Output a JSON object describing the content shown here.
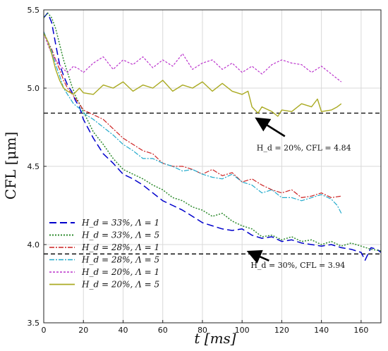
{
  "chart_data": {
    "type": "line",
    "xlabel": "t [ms]",
    "ylabel": "CFL [μm]",
    "xlim": [
      0,
      170
    ],
    "ylim": [
      3.5,
      5.5
    ],
    "xticks": [
      0,
      20,
      40,
      60,
      80,
      100,
      120,
      140,
      160
    ],
    "yticks": [
      3.5,
      4.0,
      4.5,
      5.0,
      5.5
    ],
    "xtick_labels": [
      "0",
      "20",
      "40",
      "60",
      "80",
      "100",
      "120",
      "140",
      "160"
    ],
    "ytick_labels": [
      "3.5",
      "4.0",
      "4.5",
      "5.0",
      "5.5"
    ],
    "grid": true,
    "legend_position": "lower-left",
    "reference_lines": [
      {
        "y": 4.84,
        "style": "dashed",
        "color": "#000000"
      },
      {
        "y": 3.94,
        "style": "dashed",
        "color": "#000000"
      }
    ],
    "annotations": [
      {
        "text": "H_d = 20%, CFL = 4.84",
        "text_at": [
          118,
          4.62
        ],
        "arrow_to": [
          108,
          4.8
        ]
      },
      {
        "text": "H_d = 30%, CFL = 3.94",
        "text_at": [
          115,
          3.87
        ],
        "arrow_to": [
          104,
          3.95
        ]
      }
    ],
    "series": [
      {
        "name": "H_d = 33%, Λ = 1",
        "color": "#0000cc",
        "dash": "10,5",
        "width": 1.5,
        "x": [
          0,
          2,
          4,
          6,
          8,
          10,
          12,
          14,
          16,
          18,
          20,
          25,
          30,
          35,
          40,
          45,
          50,
          55,
          60,
          65,
          70,
          75,
          80,
          85,
          90,
          95,
          100,
          105,
          110,
          115,
          120,
          125,
          130,
          135,
          140,
          145,
          150,
          155,
          160,
          162,
          165,
          168,
          170
        ],
        "y": [
          5.45,
          5.48,
          5.42,
          5.28,
          5.15,
          5.08,
          5.02,
          4.98,
          4.92,
          4.88,
          4.8,
          4.68,
          4.58,
          4.52,
          4.45,
          4.42,
          4.38,
          4.33,
          4.28,
          4.25,
          4.22,
          4.18,
          4.14,
          4.12,
          4.1,
          4.09,
          4.1,
          4.06,
          4.04,
          4.05,
          4.02,
          4.03,
          4.01,
          4.0,
          3.99,
          4.0,
          3.98,
          3.97,
          3.95,
          3.9,
          3.98,
          3.97,
          3.95
        ]
      },
      {
        "name": "H_d = 33%, Λ = 5",
        "color": "#2e8b2e",
        "dash": "2,2",
        "width": 1.5,
        "x": [
          0,
          2,
          4,
          6,
          8,
          10,
          12,
          14,
          16,
          18,
          20,
          25,
          30,
          35,
          40,
          45,
          50,
          55,
          60,
          65,
          70,
          75,
          80,
          85,
          90,
          95,
          100,
          105,
          110,
          115,
          120,
          125,
          130,
          135,
          140,
          145,
          150,
          155,
          160,
          165,
          170
        ],
        "y": [
          5.45,
          5.48,
          5.45,
          5.38,
          5.28,
          5.18,
          5.1,
          5.02,
          4.95,
          4.9,
          4.85,
          4.72,
          4.64,
          4.55,
          4.48,
          4.45,
          4.42,
          4.38,
          4.35,
          4.3,
          4.28,
          4.24,
          4.22,
          4.18,
          4.2,
          4.15,
          4.12,
          4.1,
          4.05,
          4.06,
          4.03,
          4.05,
          4.02,
          4.03,
          4.0,
          4.02,
          3.99,
          4.01,
          3.99,
          3.97,
          3.96
        ]
      },
      {
        "name": "H_d = 28%, Λ = 1",
        "color": "#cc2222",
        "dash": "7,2,2,2",
        "width": 1.2,
        "x": [
          0,
          2,
          4,
          6,
          8,
          10,
          12,
          15,
          18,
          20,
          25,
          30,
          35,
          40,
          45,
          50,
          55,
          60,
          65,
          70,
          75,
          80,
          85,
          90,
          95,
          100,
          105,
          110,
          115,
          120,
          125,
          130,
          135,
          140,
          145,
          150
        ],
        "y": [
          5.36,
          5.3,
          5.25,
          5.18,
          5.12,
          5.05,
          5.0,
          4.95,
          4.9,
          4.86,
          4.83,
          4.8,
          4.74,
          4.68,
          4.64,
          4.6,
          4.58,
          4.52,
          4.5,
          4.5,
          4.48,
          4.45,
          4.48,
          4.44,
          4.46,
          4.4,
          4.42,
          4.38,
          4.35,
          4.33,
          4.35,
          4.3,
          4.31,
          4.33,
          4.3,
          4.31
        ]
      },
      {
        "name": "H_d = 28%, Λ = 5",
        "color": "#22aacc",
        "dash": "7,2,2,2",
        "width": 1.2,
        "x": [
          0,
          2,
          4,
          6,
          8,
          10,
          12,
          15,
          18,
          20,
          25,
          30,
          35,
          40,
          45,
          50,
          55,
          60,
          65,
          70,
          75,
          80,
          85,
          90,
          95,
          100,
          105,
          110,
          115,
          120,
          125,
          130,
          135,
          140,
          145,
          148,
          150
        ],
        "y": [
          5.36,
          5.3,
          5.24,
          5.15,
          5.08,
          5.0,
          4.96,
          4.9,
          4.87,
          4.84,
          4.8,
          4.75,
          4.7,
          4.64,
          4.6,
          4.55,
          4.55,
          4.52,
          4.5,
          4.47,
          4.48,
          4.45,
          4.43,
          4.42,
          4.45,
          4.4,
          4.38,
          4.33,
          4.35,
          4.3,
          4.3,
          4.28,
          4.3,
          4.32,
          4.29,
          4.25,
          4.2
        ]
      },
      {
        "name": "H_d = 20%, Λ = 1",
        "color": "#bb33cc",
        "dash": "3,2",
        "width": 1.2,
        "x": [
          0,
          2,
          4,
          6,
          8,
          10,
          12,
          15,
          18,
          20,
          25,
          30,
          35,
          40,
          45,
          50,
          55,
          60,
          65,
          70,
          75,
          80,
          85,
          90,
          95,
          100,
          105,
          110,
          115,
          120,
          125,
          130,
          135,
          140,
          145,
          148,
          150
        ],
        "y": [
          5.35,
          5.28,
          5.22,
          5.18,
          5.15,
          5.12,
          5.1,
          5.14,
          5.12,
          5.1,
          5.16,
          5.2,
          5.12,
          5.18,
          5.15,
          5.2,
          5.13,
          5.18,
          5.14,
          5.22,
          5.12,
          5.16,
          5.18,
          5.12,
          5.16,
          5.1,
          5.14,
          5.09,
          5.15,
          5.18,
          5.16,
          5.15,
          5.1,
          5.14,
          5.09,
          5.06,
          5.04
        ]
      },
      {
        "name": "H_d = 20%, Λ = 5",
        "color": "#aaaa22",
        "dash": "",
        "width": 1.4,
        "x": [
          0,
          2,
          4,
          6,
          8,
          10,
          12,
          15,
          18,
          20,
          25,
          30,
          35,
          40,
          45,
          50,
          55,
          60,
          65,
          70,
          75,
          80,
          85,
          90,
          95,
          100,
          103,
          105,
          108,
          110,
          115,
          118,
          120,
          125,
          130,
          135,
          138,
          140,
          145,
          148,
          150
        ],
        "y": [
          5.35,
          5.3,
          5.22,
          5.12,
          5.05,
          5.0,
          4.98,
          4.96,
          5.0,
          4.97,
          4.96,
          5.02,
          5.0,
          5.04,
          4.98,
          5.02,
          5.0,
          5.05,
          4.98,
          5.02,
          5.0,
          5.04,
          4.98,
          5.03,
          4.98,
          4.96,
          4.98,
          4.88,
          4.84,
          4.88,
          4.85,
          4.82,
          4.86,
          4.85,
          4.9,
          4.88,
          4.93,
          4.85,
          4.86,
          4.88,
          4.9
        ]
      }
    ]
  }
}
